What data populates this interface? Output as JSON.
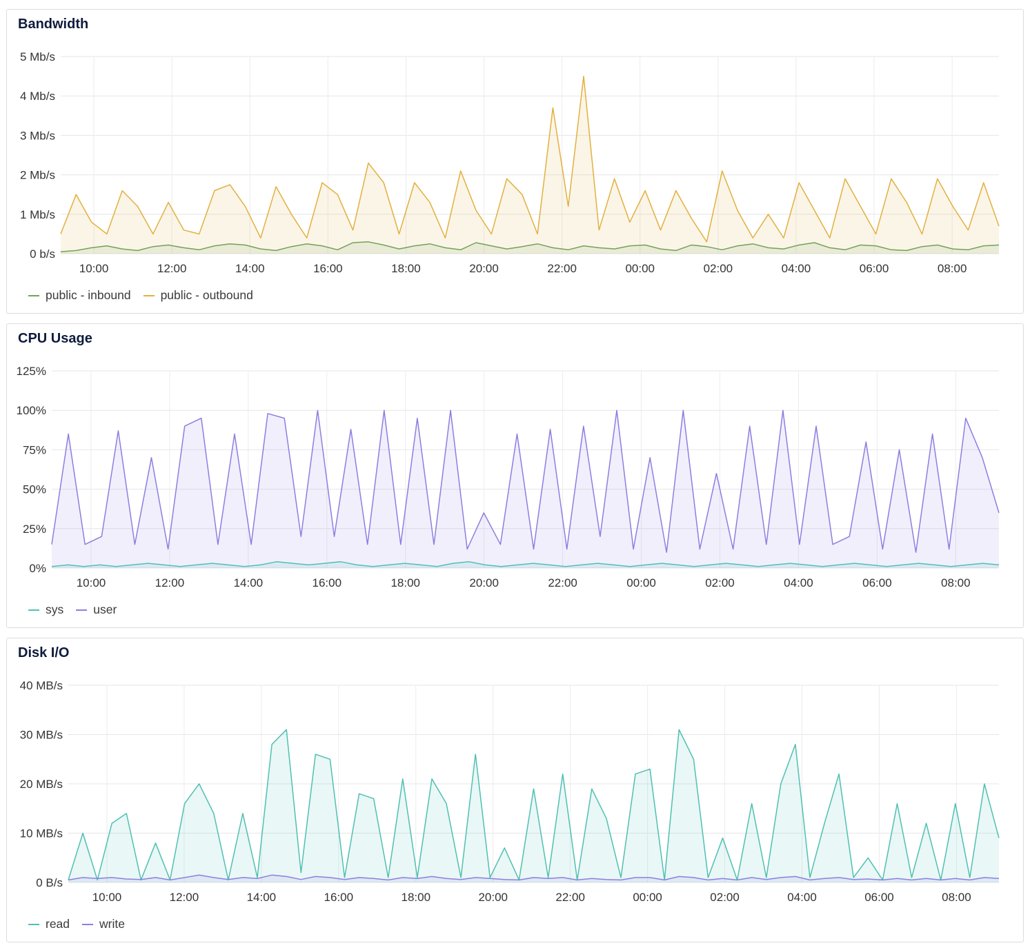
{
  "panels": [
    {
      "title": "Bandwidth",
      "chart_data": {
        "type": "area",
        "title": "Bandwidth",
        "x_ticks": [
          "10:00",
          "12:00",
          "14:00",
          "16:00",
          "18:00",
          "20:00",
          "22:00",
          "00:00",
          "02:00",
          "04:00",
          "06:00",
          "08:00"
        ],
        "y_ticks": [
          "0 b/s",
          "1 Mb/s",
          "2 Mb/s",
          "3 Mb/s",
          "4 Mb/s",
          "5 Mb/s"
        ],
        "ylim": [
          0,
          5
        ],
        "y_unit": "Mb/s",
        "x_start_hour": 9.15,
        "x_end_hour": 33.2,
        "grid": true,
        "legend_position": "bottom-left",
        "series": [
          {
            "name": "public - inbound",
            "color": "#73a15a",
            "values": [
              0.05,
              0.08,
              0.15,
              0.2,
              0.12,
              0.08,
              0.18,
              0.22,
              0.15,
              0.1,
              0.2,
              0.25,
              0.22,
              0.12,
              0.08,
              0.18,
              0.25,
              0.2,
              0.1,
              0.28,
              0.3,
              0.22,
              0.12,
              0.2,
              0.25,
              0.15,
              0.1,
              0.28,
              0.2,
              0.12,
              0.18,
              0.25,
              0.15,
              0.1,
              0.2,
              0.15,
              0.12,
              0.2,
              0.22,
              0.12,
              0.08,
              0.22,
              0.18,
              0.1,
              0.2,
              0.25,
              0.15,
              0.12,
              0.22,
              0.28,
              0.15,
              0.1,
              0.22,
              0.2,
              0.1,
              0.08,
              0.18,
              0.22,
              0.12,
              0.1,
              0.2,
              0.22
            ]
          },
          {
            "name": "public - outbound",
            "color": "#e2b03e",
            "values": [
              0.5,
              1.5,
              0.8,
              0.5,
              1.6,
              1.2,
              0.5,
              1.3,
              0.6,
              0.5,
              1.6,
              1.75,
              1.2,
              0.4,
              1.7,
              1.0,
              0.4,
              1.8,
              1.5,
              0.6,
              2.3,
              1.8,
              0.5,
              1.8,
              1.3,
              0.4,
              2.1,
              1.1,
              0.5,
              1.9,
              1.5,
              0.5,
              3.7,
              1.2,
              4.5,
              0.6,
              1.9,
              0.8,
              1.6,
              0.6,
              1.6,
              0.9,
              0.3,
              2.1,
              1.1,
              0.4,
              1.0,
              0.4,
              1.8,
              1.1,
              0.4,
              1.9,
              1.2,
              0.5,
              1.9,
              1.3,
              0.5,
              1.9,
              1.2,
              0.6,
              1.8,
              0.7
            ]
          }
        ]
      }
    },
    {
      "title": "CPU Usage",
      "chart_data": {
        "type": "area",
        "title": "CPU Usage",
        "x_ticks": [
          "10:00",
          "12:00",
          "14:00",
          "16:00",
          "18:00",
          "20:00",
          "22:00",
          "00:00",
          "02:00",
          "04:00",
          "06:00",
          "08:00"
        ],
        "y_ticks": [
          "0%",
          "25%",
          "50%",
          "75%",
          "100%",
          "125%"
        ],
        "ylim": [
          0,
          125
        ],
        "y_unit": "%",
        "x_start_hour": 9.0,
        "x_end_hour": 33.1,
        "grid": true,
        "legend_position": "bottom-left",
        "series": [
          {
            "name": "sys",
            "color": "#4ec0b2",
            "values": [
              1,
              2,
              1,
              2,
              1,
              2,
              3,
              2,
              1,
              2,
              3,
              2,
              1,
              2,
              4,
              3,
              2,
              3,
              4,
              2,
              1,
              2,
              3,
              2,
              1,
              3,
              4,
              2,
              1,
              2,
              3,
              2,
              1,
              2,
              3,
              2,
              1,
              2,
              3,
              2,
              1,
              2,
              3,
              2,
              1,
              2,
              3,
              2,
              1,
              2,
              3,
              2,
              1,
              2,
              3,
              2,
              1,
              2,
              3,
              2
            ]
          },
          {
            "name": "user",
            "color": "#8b7fe0",
            "values": [
              15,
              85,
              15,
              20,
              87,
              15,
              70,
              12,
              90,
              95,
              15,
              85,
              15,
              98,
              95,
              20,
              100,
              20,
              88,
              15,
              100,
              15,
              95,
              15,
              100,
              12,
              35,
              15,
              85,
              12,
              88,
              12,
              90,
              20,
              100,
              12,
              70,
              10,
              100,
              12,
              60,
              12,
              90,
              15,
              100,
              15,
              90,
              15,
              20,
              80,
              12,
              75,
              10,
              85,
              12,
              95,
              70,
              35
            ]
          }
        ]
      }
    },
    {
      "title": "Disk I/O",
      "chart_data": {
        "type": "area",
        "title": "Disk I/O",
        "x_ticks": [
          "10:00",
          "12:00",
          "14:00",
          "16:00",
          "18:00",
          "20:00",
          "22:00",
          "00:00",
          "02:00",
          "04:00",
          "06:00",
          "08:00"
        ],
        "y_ticks": [
          "0 B/s",
          "10 MB/s",
          "20 MB/s",
          "30 MB/s",
          "40 MB/s"
        ],
        "ylim": [
          0,
          40
        ],
        "y_unit": "MB/s",
        "x_start_hour": 9.0,
        "x_end_hour": 33.1,
        "grid": true,
        "legend_position": "bottom-left",
        "series": [
          {
            "name": "read",
            "color": "#4ec0b2",
            "values": [
              0.5,
              10,
              0.5,
              12,
              14,
              0.5,
              8,
              0.5,
              16,
              20,
              14,
              0.5,
              14,
              1,
              28,
              31,
              2,
              26,
              25,
              1,
              18,
              17,
              1,
              21,
              1,
              21,
              16,
              1,
              26,
              1,
              7,
              0.5,
              19,
              1,
              22,
              0.5,
              19,
              13,
              1,
              22,
              23,
              0.5,
              31,
              25,
              1,
              9,
              0.5,
              16,
              1,
              20,
              28,
              1,
              12,
              22,
              1,
              5,
              0.5,
              16,
              1,
              12,
              0.5,
              16,
              1,
              20,
              9
            ]
          },
          {
            "name": "write",
            "color": "#8b7fe0",
            "values": [
              0.5,
              1,
              0.8,
              1,
              0.7,
              0.6,
              1,
              0.5,
              1,
              1.5,
              1,
              0.6,
              1,
              0.8,
              1.5,
              1.2,
              0.6,
              1.2,
              1,
              0.6,
              1,
              0.8,
              0.5,
              1,
              0.8,
              1.2,
              0.8,
              0.6,
              1,
              0.8,
              0.6,
              0.5,
              1,
              0.8,
              1,
              0.5,
              0.8,
              0.6,
              0.5,
              1,
              1,
              0.5,
              1.2,
              1,
              0.5,
              0.8,
              0.5,
              1,
              0.6,
              1,
              1.2,
              0.5,
              0.8,
              1,
              0.6,
              0.7,
              0.5,
              0.8,
              0.5,
              0.8,
              0.5,
              0.8,
              0.5,
              1,
              0.8
            ]
          }
        ]
      }
    }
  ]
}
